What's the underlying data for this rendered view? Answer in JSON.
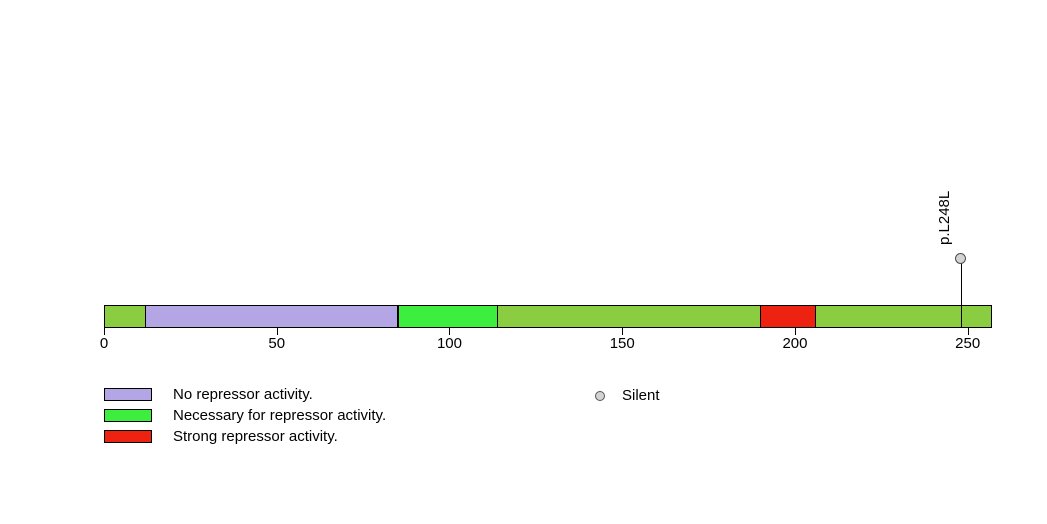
{
  "chart_data": {
    "type": "lollipop",
    "title": "",
    "xlabel": "",
    "background": "#FFFFFF",
    "axis": {
      "min": 0,
      "max": 257,
      "ticks": [
        0,
        50,
        100,
        150,
        200,
        250
      ],
      "tick_labels": [
        "0",
        "50",
        "100",
        "150",
        "200",
        "250"
      ]
    },
    "backbone": {
      "start": 0,
      "end": 257,
      "color": "#8BCD40",
      "border_color": "#000000"
    },
    "regions": [
      {
        "label": "No repressor activity.",
        "start": 12,
        "end": 85,
        "color": "#B4A6E5"
      },
      {
        "label": "Necessary for repressor activity.",
        "start": 85,
        "end": 114,
        "color": "#3EEE3E"
      },
      {
        "label": "Strong repressor activity.",
        "start": 190,
        "end": 206,
        "color": "#EE2211"
      }
    ],
    "mutations": [
      {
        "label": "p.L248L",
        "position": 248,
        "type": "Silent",
        "color": "#D3D3D3"
      }
    ],
    "legend": {
      "region_items": [
        {
          "label": "No repressor activity.",
          "color": "#B4A6E5"
        },
        {
          "label": "Necessary for repressor activity.",
          "color": "#3EEE3E"
        },
        {
          "label": "Strong repressor activity.",
          "color": "#EE2211"
        }
      ],
      "mutation_items": [
        {
          "label": "Silent",
          "color": "#D3D3D3"
        }
      ]
    }
  }
}
